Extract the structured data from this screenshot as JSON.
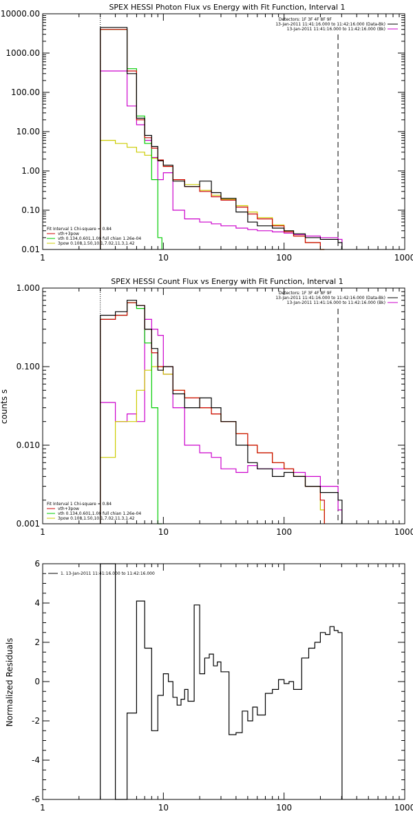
{
  "chart_data": [
    {
      "type": "line",
      "title": "SPEX HESSI Photon Flux vs Energy with Fit Function, Interval 1",
      "x_scale": "log",
      "y_scale": "log",
      "xlim": [
        1,
        1000
      ],
      "ylim": [
        0.01,
        10000
      ],
      "x_ticks": [
        "1",
        "10",
        "100",
        "1000"
      ],
      "y_ticks": [
        "0.01",
        "0.10",
        "1.00",
        "10.00",
        "100.00",
        "1000.00",
        "10000.00"
      ],
      "dotted_line_x": 3,
      "dashed_line_x": 280,
      "legend_right": [
        {
          "text": "Detectors: 1F 3F 4F 8F 9F",
          "color": "#000000"
        },
        {
          "text": "13-Jan-2011 11:41:16.000 to 11:42:16.000 (Data-Bk)",
          "color": "#000000"
        },
        {
          "text": "13-Jan-2011 11:41:16.000 to 11:42:16.000 (Bk)",
          "color": "#cc00cc"
        }
      ],
      "legend_left": [
        {
          "text": "Fit Interval 1    Chi-square = 0.84",
          "color": "#000000"
        },
        {
          "text": "vth+3pow",
          "color": "#cc0000"
        },
        {
          "text": "vth 0.134,0.601,1.00  full chian 1.26e-04",
          "color": "#00cc00"
        },
        {
          "text": "3pow 0.108,1.50,10.1,7.02,11.3,1.42",
          "color": "#cccc00"
        }
      ],
      "series": [
        {
          "name": "Data-Bk",
          "color": "#000000",
          "x": [
            3,
            4,
            5,
            6,
            7,
            8,
            9,
            10,
            12,
            15,
            20,
            25,
            30,
            40,
            50,
            60,
            80,
            100,
            120,
            150,
            200,
            280
          ],
          "y": [
            4500,
            4500,
            300,
            22,
            8,
            4.2,
            1.8,
            1.4,
            0.55,
            0.4,
            0.55,
            0.28,
            0.2,
            0.09,
            0.05,
            0.04,
            0.035,
            0.03,
            0.025,
            0.02,
            0.018,
            0.015
          ]
        },
        {
          "name": "vth+3pow",
          "color": "#cc0000",
          "x": [
            3,
            4,
            5,
            6,
            7,
            8,
            9,
            10,
            12,
            15,
            20,
            25,
            30,
            40,
            50,
            60,
            80,
            100,
            120,
            150,
            200
          ],
          "y": [
            4000,
            4000,
            350,
            20,
            7,
            3.8,
            1.9,
            1.3,
            0.6,
            0.4,
            0.3,
            0.22,
            0.18,
            0.12,
            0.08,
            0.06,
            0.04,
            0.028,
            0.022,
            0.015,
            0.01
          ]
        },
        {
          "name": "vth",
          "color": "#00cc00",
          "x": [
            3,
            4,
            5,
            6,
            7,
            8,
            9
          ],
          "y": [
            4000,
            4000,
            400,
            25,
            5,
            0.6,
            0.02
          ]
        },
        {
          "name": "3pow",
          "color": "#cccc00",
          "x": [
            3,
            4,
            5,
            6,
            7,
            8,
            9,
            10,
            12,
            15,
            20,
            25,
            30,
            40,
            50,
            60,
            80,
            100,
            120,
            150,
            200
          ],
          "y": [
            6,
            5,
            4,
            3,
            2.5,
            2.1,
            1.8,
            1.3,
            0.6,
            0.45,
            0.32,
            0.24,
            0.19,
            0.13,
            0.09,
            0.065,
            0.042,
            0.03,
            0.022,
            0.015,
            0.01
          ]
        },
        {
          "name": "Bk",
          "color": "#cc00cc",
          "x": [
            3,
            4,
            5,
            6,
            7,
            8,
            9,
            10,
            12,
            15,
            20,
            25,
            30,
            40,
            50,
            60,
            80,
            100,
            120,
            150,
            200,
            280
          ],
          "y": [
            350,
            350,
            45,
            15,
            6,
            2.2,
            0.6,
            0.9,
            0.1,
            0.06,
            0.05,
            0.045,
            0.04,
            0.035,
            0.032,
            0.03,
            0.028,
            0.026,
            0.024,
            0.022,
            0.02,
            0.018
          ]
        }
      ]
    },
    {
      "type": "line",
      "title": "SPEX HESSI Count Flux vs Energy with Fit Function, Interval 1",
      "ylabel": "counts s",
      "x_scale": "log",
      "y_scale": "log",
      "xlim": [
        1,
        1000
      ],
      "ylim": [
        0.001,
        1
      ],
      "x_ticks": [
        "1",
        "10",
        "100",
        "1000"
      ],
      "y_ticks": [
        "0.001",
        "0.010",
        "0.100",
        "1.000"
      ],
      "dotted_line_x": 3,
      "dashed_line_x": 280,
      "legend_right": [
        {
          "text": "Detectors: 1F 3F 4F 8F 9F",
          "color": "#000000"
        },
        {
          "text": "13-Jan-2011 11:41:16.000 to 11:42:16.000 (Data-Bk)",
          "color": "#000000"
        },
        {
          "text": "13-Jan-2011 11:41:16.000 to 11:42:16.000 (Bk)",
          "color": "#cc00cc"
        }
      ],
      "legend_left": [
        {
          "text": "Fit Interval 1    Chi-square = 0.84",
          "color": "#000000"
        },
        {
          "text": "vth+3pow",
          "color": "#cc0000"
        },
        {
          "text": "vth 0.134,0.601,1.00  full chian 1.26e-04",
          "color": "#00cc00"
        },
        {
          "text": "3pow 0.108,1.50,10.1,7.02,11.3,1.42",
          "color": "#cccc00"
        }
      ],
      "series": [
        {
          "name": "Data-Bk",
          "color": "#000000",
          "x": [
            3,
            4,
            5,
            6,
            7,
            8,
            9,
            10,
            12,
            15,
            20,
            25,
            30,
            40,
            50,
            60,
            80,
            100,
            120,
            150,
            200,
            280
          ],
          "y": [
            0.45,
            0.5,
            0.7,
            0.6,
            0.3,
            0.17,
            0.09,
            0.1,
            0.045,
            0.03,
            0.04,
            0.03,
            0.02,
            0.01,
            0.006,
            0.005,
            0.004,
            0.0045,
            0.004,
            0.003,
            0.0025,
            0.002
          ]
        },
        {
          "name": "vth+3pow",
          "color": "#cc0000",
          "x": [
            3,
            4,
            5,
            6,
            7,
            8,
            9,
            10,
            12,
            15,
            20,
            25,
            30,
            40,
            50,
            60,
            80,
            100,
            120,
            150,
            200
          ],
          "y": [
            0.4,
            0.45,
            0.65,
            0.6,
            0.3,
            0.15,
            0.1,
            0.1,
            0.05,
            0.04,
            0.03,
            0.025,
            0.02,
            0.014,
            0.01,
            0.008,
            0.006,
            0.005,
            0.004,
            0.003,
            0.002
          ]
        },
        {
          "name": "vth",
          "color": "#00cc00",
          "x": [
            3,
            4,
            5,
            6,
            7,
            8,
            9
          ],
          "y": [
            0.4,
            0.45,
            0.65,
            0.55,
            0.2,
            0.03,
            0.001
          ]
        },
        {
          "name": "3pow",
          "color": "#cccc00",
          "x": [
            3,
            4,
            5,
            6,
            7,
            8,
            9,
            10,
            12,
            15,
            20,
            25,
            30,
            40,
            50,
            60,
            80,
            100,
            120,
            150,
            200
          ],
          "y": [
            0.007,
            0.02,
            0.02,
            0.05,
            0.09,
            0.1,
            0.1,
            0.08,
            0.05,
            0.04,
            0.03,
            0.025,
            0.02,
            0.014,
            0.01,
            0.008,
            0.006,
            0.005,
            0.004,
            0.003,
            0.0015
          ]
        },
        {
          "name": "Bk",
          "color": "#cc00cc",
          "x": [
            3,
            4,
            5,
            6,
            7,
            8,
            9,
            10,
            12,
            15,
            20,
            25,
            30,
            40,
            50,
            60,
            80,
            100,
            120,
            150,
            200,
            280
          ],
          "y": [
            0.035,
            0.02,
            0.025,
            0.02,
            0.4,
            0.3,
            0.25,
            0.08,
            0.03,
            0.01,
            0.008,
            0.007,
            0.005,
            0.0045,
            0.0055,
            0.005,
            0.005,
            0.005,
            0.0045,
            0.004,
            0.003,
            0.0015
          ]
        }
      ]
    },
    {
      "type": "line",
      "title": "",
      "ylabel": "Normalized Residuals",
      "x_scale": "log",
      "xlim": [
        1,
        1000
      ],
      "ylim": [
        -6,
        6
      ],
      "x_ticks": [
        "1",
        "10",
        "100",
        "1000"
      ],
      "y_ticks": [
        "-6",
        "-4",
        "-2",
        "0",
        "2",
        "4",
        "6"
      ],
      "legend_left": [
        {
          "text": "1. 13-Jan-2011 11:41:16.000 to 11:42:16.000",
          "color": "#000000"
        }
      ],
      "series": [
        {
          "name": "1. 13-Jan-2011 11:41:16.000 to 11:42:16.000",
          "color": "#000000",
          "x": [
            3,
            4,
            5,
            6,
            7,
            8,
            9,
            10,
            11,
            12,
            13,
            14,
            15,
            16,
            18,
            20,
            22,
            24,
            26,
            28,
            30,
            35,
            40,
            45,
            50,
            55,
            60,
            70,
            80,
            90,
            100,
            110,
            120,
            140,
            160,
            180,
            200,
            220,
            240,
            260,
            280
          ],
          "y": [
            6,
            -6,
            -1.6,
            4.1,
            1.7,
            -2.5,
            -0.7,
            0.4,
            0,
            -0.8,
            -1.2,
            -0.9,
            -0.4,
            -1,
            3.9,
            0.4,
            1.2,
            1.4,
            0.8,
            1,
            0.5,
            -2.7,
            -2.6,
            -1.5,
            -2,
            -1.3,
            -1.7,
            -0.6,
            -0.4,
            0.1,
            -0.1,
            0,
            -0.4,
            1.2,
            1.7,
            2,
            2.5,
            2.4,
            2.8,
            2.6,
            2.5
          ]
        }
      ]
    }
  ]
}
